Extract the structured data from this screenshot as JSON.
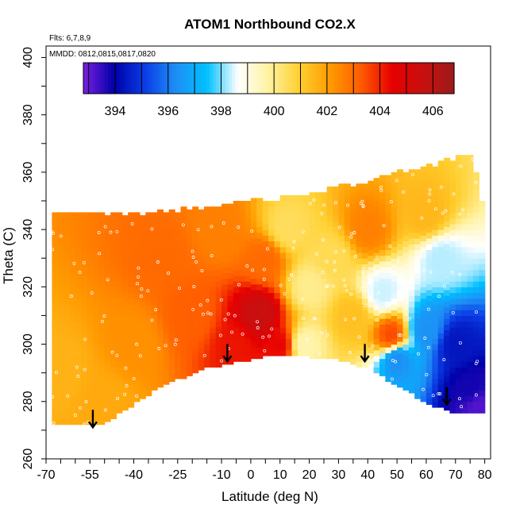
{
  "chart_data": {
    "type": "heatmap",
    "title": "ATOM1 Northbound CO2.X",
    "annotations": [
      "Flts: 6,7,8,9",
      "MMDD: 0812,0815,0817,0820"
    ],
    "xlabel": "Latitude (deg N)",
    "ylabel": "Theta (C)",
    "xlim": [
      -70,
      82
    ],
    "ylim": [
      260,
      404
    ],
    "x_ticks": [
      -70,
      -55,
      -40,
      -25,
      -10,
      0,
      10,
      20,
      30,
      40,
      50,
      60,
      70,
      80
    ],
    "x_tick_labels": [
      "-70",
      "-55",
      "-40",
      "-25",
      "-10",
      "0",
      "10",
      "20",
      "30",
      "40",
      "50",
      "60",
      "70",
      "80"
    ],
    "y_ticks": [
      260,
      280,
      300,
      320,
      340,
      360,
      380,
      400
    ],
    "y_tick_labels": [
      "260",
      "280",
      "300",
      "320",
      "340",
      "360",
      "380",
      "400"
    ],
    "colorbar": {
      "range": [
        392.8,
        406.8
      ],
      "ticks": [
        394,
        396,
        398,
        400,
        402,
        404,
        406
      ],
      "tick_labels": [
        "394",
        "396",
        "398",
        "400",
        "402",
        "404",
        "406"
      ],
      "colors": [
        "#7b1fe0",
        "#0000a8",
        "#0a3ee6",
        "#1e8ff5",
        "#00c0ff",
        "#ffffff",
        "#fff2a0",
        "#ffcf30",
        "#ff9a00",
        "#ff5a00",
        "#e60000",
        "#c81010",
        "#9c1a1a"
      ]
    },
    "domain_top": [
      [
        -68,
        345
      ],
      [
        -55,
        345
      ],
      [
        -40,
        344
      ],
      [
        -25,
        346
      ],
      [
        -10,
        347
      ],
      [
        0,
        350
      ],
      [
        10,
        350
      ],
      [
        20,
        352
      ],
      [
        30,
        354
      ],
      [
        40,
        356
      ],
      [
        50,
        359
      ],
      [
        60,
        361
      ],
      [
        70,
        364
      ],
      [
        76,
        365
      ],
      [
        80,
        345
      ]
    ],
    "domain_bottom": [
      [
        -68,
        272
      ],
      [
        -52,
        272
      ],
      [
        -45,
        276
      ],
      [
        -30,
        286
      ],
      [
        -15,
        292
      ],
      [
        0,
        295
      ],
      [
        10,
        297
      ],
      [
        20,
        296
      ],
      [
        30,
        295
      ],
      [
        40,
        292
      ],
      [
        50,
        286
      ],
      [
        60,
        280
      ],
      [
        70,
        276
      ],
      [
        80,
        276
      ]
    ],
    "field_anchors": [
      {
        "lat": -65,
        "theta": 290,
        "co2": 401.6
      },
      {
        "lat": -50,
        "theta": 280,
        "co2": 401.8
      },
      {
        "lat": -40,
        "theta": 300,
        "co2": 402.3
      },
      {
        "lat": -30,
        "theta": 330,
        "co2": 403.0
      },
      {
        "lat": -20,
        "theta": 310,
        "co2": 403.2
      },
      {
        "lat": -10,
        "theta": 340,
        "co2": 402.6
      },
      {
        "lat": -5,
        "theta": 300,
        "co2": 404.2
      },
      {
        "lat": 3,
        "theta": 310,
        "co2": 405.6
      },
      {
        "lat": 10,
        "theta": 300,
        "co2": 404.4
      },
      {
        "lat": 5,
        "theta": 330,
        "co2": 403.0
      },
      {
        "lat": 12,
        "theta": 340,
        "co2": 400.5
      },
      {
        "lat": 20,
        "theta": 320,
        "co2": 400.0
      },
      {
        "lat": 18,
        "theta": 300,
        "co2": 399.6
      },
      {
        "lat": 28,
        "theta": 330,
        "co2": 400.6
      },
      {
        "lat": 35,
        "theta": 310,
        "co2": 401.3
      },
      {
        "lat": 40,
        "theta": 340,
        "co2": 402.6
      },
      {
        "lat": 45,
        "theta": 318,
        "co2": 398.4
      },
      {
        "lat": 48,
        "theta": 303,
        "co2": 403.5
      },
      {
        "lat": 50,
        "theta": 295,
        "co2": 396.3
      },
      {
        "lat": 60,
        "theta": 305,
        "co2": 396.4
      },
      {
        "lat": 65,
        "theta": 330,
        "co2": 398.3
      },
      {
        "lat": 60,
        "theta": 345,
        "co2": 401.5
      },
      {
        "lat": 70,
        "theta": 300,
        "co2": 394.4
      },
      {
        "lat": 75,
        "theta": 285,
        "co2": 393.8
      },
      {
        "lat": 78,
        "theta": 278,
        "co2": 393.2
      }
    ],
    "arrows_lat": [
      -54,
      -8,
      39,
      67
    ],
    "arrow_tips": [
      [
        -54,
        271
      ],
      [
        -8,
        294
      ],
      [
        39,
        294
      ],
      [
        67,
        279
      ]
    ]
  }
}
